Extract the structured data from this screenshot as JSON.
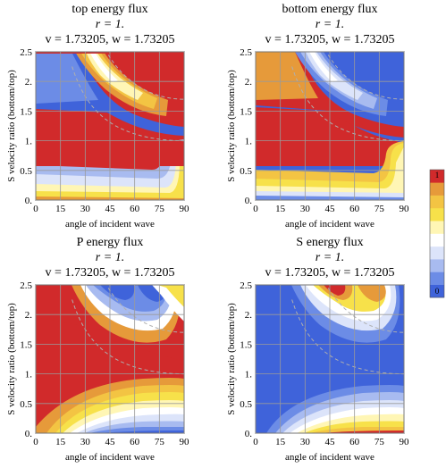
{
  "colors": {
    "blue": "#3F63DA",
    "red": "#D12A2B",
    "grid": "#9A9A9A",
    "dashed": "#AFAFAF",
    "legend": [
      "#3F63DA",
      "#6C8CE6",
      "#A8BBF0",
      "#DCE4FA",
      "#FFFFFF",
      "#FFF6B5",
      "#F7E14A",
      "#F3C443",
      "#E69A3A",
      "#D12A2B"
    ]
  },
  "legend": {
    "top_label": "1",
    "bottom_label": "0"
  },
  "chart_data": [
    {
      "type": "heatmap",
      "title_lines": [
        "top energy flux",
        "r = 1.",
        "v = 1.73205, w = 1.73205"
      ],
      "xlabel": "angle of incident wave",
      "ylabel": "S velocity ratio (bottom/top)",
      "xlim": [
        0,
        90
      ],
      "ylim": [
        0,
        2.5
      ],
      "x_ticks": [
        "0",
        "15",
        "30",
        "45",
        "60",
        "75",
        "90"
      ],
      "y_ticks": [
        "0.",
        "0.5",
        "1.",
        "1.5",
        "2.",
        "2.5"
      ],
      "grid": true
    },
    {
      "type": "heatmap",
      "title_lines": [
        "bottom energy flux",
        "r = 1.",
        "v = 1.73205, w = 1.73205"
      ],
      "xlabel": "angle of incident wave",
      "ylabel": "S velocity ratio (bottom/top)",
      "xlim": [
        0,
        90
      ],
      "ylim": [
        0,
        2.5
      ],
      "x_ticks": [
        "0",
        "15",
        "30",
        "45",
        "60",
        "75",
        "90"
      ],
      "y_ticks": [
        "0.",
        "0.5",
        "1.",
        "1.5",
        "2.",
        "2.5"
      ],
      "grid": true
    },
    {
      "type": "heatmap",
      "title_lines": [
        "P energy flux",
        "r = 1.",
        "v = 1.73205, w = 1.73205"
      ],
      "xlabel": "angle of incident wave",
      "ylabel": "S velocity ratio (bottom/top)",
      "xlim": [
        0,
        90
      ],
      "ylim": [
        0,
        2.5
      ],
      "x_ticks": [
        "0",
        "15",
        "30",
        "45",
        "60",
        "75",
        "90"
      ],
      "y_ticks": [
        "0.",
        "0.5",
        "1.",
        "1.5",
        "2.",
        "2.5"
      ],
      "grid": true
    },
    {
      "type": "heatmap",
      "title_lines": [
        "S energy flux",
        "r = 1.",
        "v = 1.73205, w = 1.73205"
      ],
      "xlabel": "angle of incident wave",
      "ylabel": "S velocity ratio (bottom/top)",
      "xlim": [
        0,
        90
      ],
      "ylim": [
        0,
        2.5
      ],
      "x_ticks": [
        "0",
        "15",
        "30",
        "45",
        "60",
        "75",
        "90"
      ],
      "y_ticks": [
        "0.",
        "0.5",
        "1.",
        "1.5",
        "2.",
        "2.5"
      ],
      "grid": true
    }
  ]
}
